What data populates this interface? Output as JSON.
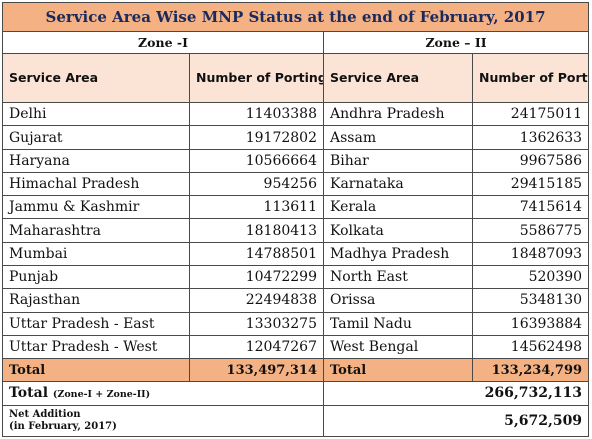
{
  "title": "Service Area Wise MNP Status at the end of February, 2017",
  "zone1": {
    "label": "Zone -I"
  },
  "zone2": {
    "label": "Zone – II"
  },
  "headers": {
    "service_area": "Service Area",
    "porting_requests": "Number of Porting Requests"
  },
  "zone1_rows": [
    {
      "area": "Delhi",
      "value": "11403388"
    },
    {
      "area": "Gujarat",
      "value": "19172802"
    },
    {
      "area": "Haryana",
      "value": "10566664"
    },
    {
      "area": "Himachal Pradesh",
      "value": "954256"
    },
    {
      "area": "Jammu & Kashmir",
      "value": "113611"
    },
    {
      "area": "Maharashtra",
      "value": "18180413"
    },
    {
      "area": "Mumbai",
      "value": "14788501"
    },
    {
      "area": "Punjab",
      "value": "10472299"
    },
    {
      "area": "Rajasthan",
      "value": "22494838"
    },
    {
      "area": "Uttar Pradesh - East",
      "value": "13303275"
    },
    {
      "area": "Uttar Pradesh - West",
      "value": "12047267"
    }
  ],
  "zone2_rows": [
    {
      "area": "Andhra Pradesh",
      "value": "24175011"
    },
    {
      "area": "Assam",
      "value": "1362633"
    },
    {
      "area": "Bihar",
      "value": "9967586"
    },
    {
      "area": "Karnataka",
      "value": "29415185"
    },
    {
      "area": "Kerala",
      "value": "7415614"
    },
    {
      "area": "Kolkata",
      "value": "5586775"
    },
    {
      "area": "Madhya Pradesh",
      "value": "18487093"
    },
    {
      "area": "North East",
      "value": "520390"
    },
    {
      "area": "Orissa",
      "value": "5348130"
    },
    {
      "area": "Tamil Nadu",
      "value": "16393884"
    },
    {
      "area": "West Bengal",
      "value": "14562498"
    }
  ],
  "totals": {
    "zone1_label": "Total",
    "zone1_value": "133,497,314",
    "zone2_label": "Total",
    "zone2_value": "133,234,799"
  },
  "grand_total": {
    "label": "Total",
    "sublabel": "(Zone-I + Zone-II)",
    "value": "266,732,113"
  },
  "net_addition": {
    "label_line1": "Net Addition",
    "label_line2": "(in February, 2017)",
    "value": "5,672,509"
  },
  "colors": {
    "title_bg": "#f4b183",
    "header_bg": "#fbe4d5",
    "total_bg": "#f4b183",
    "title_text": "#1a2a5e"
  }
}
